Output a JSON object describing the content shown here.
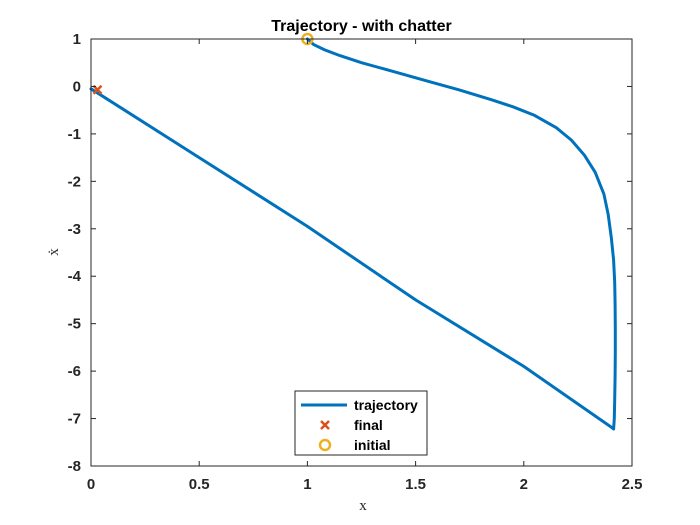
{
  "chart_data": {
    "type": "line",
    "title": "Trajectory - with chatter",
    "xlabel": "x",
    "ylabel": "ẋ",
    "xlim": [
      0,
      2.5
    ],
    "ylim": [
      -8,
      1
    ],
    "xticks": [
      0,
      0.5,
      1,
      1.5,
      2,
      2.5
    ],
    "xtick_labels": [
      "0",
      "0.5",
      "1",
      "1.5",
      "2",
      "2.5"
    ],
    "yticks": [
      1,
      0,
      -1,
      -2,
      -3,
      -4,
      -5,
      -6,
      -7,
      -8
    ],
    "ytick_labels": [
      "1",
      "0",
      "-1",
      "-2",
      "-3",
      "-4",
      "-5",
      "-6",
      "-7",
      "-8"
    ],
    "grid": false,
    "legend_position": "bottom-center",
    "series": [
      {
        "name": "trajectory",
        "kind": "line",
        "color": "#0072BD",
        "x": [
          1.0,
          1.03,
          1.08,
          1.15,
          1.25,
          1.4,
          1.55,
          1.7,
          1.85,
          1.95,
          2.05,
          2.15,
          2.22,
          2.28,
          2.33,
          2.37,
          2.39,
          2.405,
          2.415,
          2.42,
          2.422,
          2.423,
          2.423,
          2.422,
          2.42,
          2.418,
          2.415,
          2.41,
          2.0,
          1.5,
          1.0,
          0.5,
          0.0
        ],
        "y": [
          1.0,
          0.88,
          0.77,
          0.65,
          0.5,
          0.31,
          0.12,
          -0.07,
          -0.28,
          -0.43,
          -0.61,
          -0.87,
          -1.13,
          -1.45,
          -1.81,
          -2.27,
          -2.7,
          -3.2,
          -3.66,
          -4.13,
          -4.6,
          -5.1,
          -5.6,
          -6.1,
          -6.6,
          -7.0,
          -7.22,
          -7.2,
          -5.9,
          -4.5,
          -2.95,
          -1.5,
          -0.05
        ]
      },
      {
        "name": "final",
        "kind": "marker",
        "marker": "x",
        "color": "#D95319",
        "x": [
          0.03
        ],
        "y": [
          -0.07
        ]
      },
      {
        "name": "initial",
        "kind": "marker",
        "marker": "o",
        "color": "#EDB120",
        "x": [
          1.0
        ],
        "y": [
          1.0
        ]
      }
    ]
  }
}
